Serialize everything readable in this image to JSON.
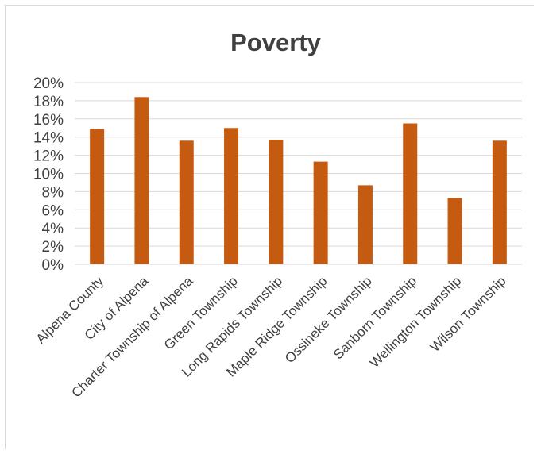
{
  "chart_data": {
    "type": "bar",
    "title": "Poverty",
    "xlabel": "",
    "ylabel": "",
    "categories": [
      "Alpena County",
      "City of Alpena",
      "Charter Township of Alpena",
      "Green Township",
      "Long Rapids Township",
      "Maple Ridge Township",
      "Ossineke Township",
      "Sanborn Township",
      "Wellington Township",
      "Wilson Township"
    ],
    "values": [
      0.149,
      0.184,
      0.136,
      0.15,
      0.137,
      0.113,
      0.087,
      0.155,
      0.073,
      0.136
    ],
    "ylim": [
      0,
      0.2
    ],
    "yticks": [
      0,
      0.02,
      0.04,
      0.06,
      0.08,
      0.1,
      0.12,
      0.14,
      0.16,
      0.18,
      0.2
    ],
    "ytick_labels": [
      "0%",
      "2%",
      "4%",
      "6%",
      "8%",
      "10%",
      "12%",
      "14%",
      "16%",
      "18%",
      "20%"
    ],
    "grid": true,
    "legend": "none",
    "bar_color": "#c55a11"
  }
}
